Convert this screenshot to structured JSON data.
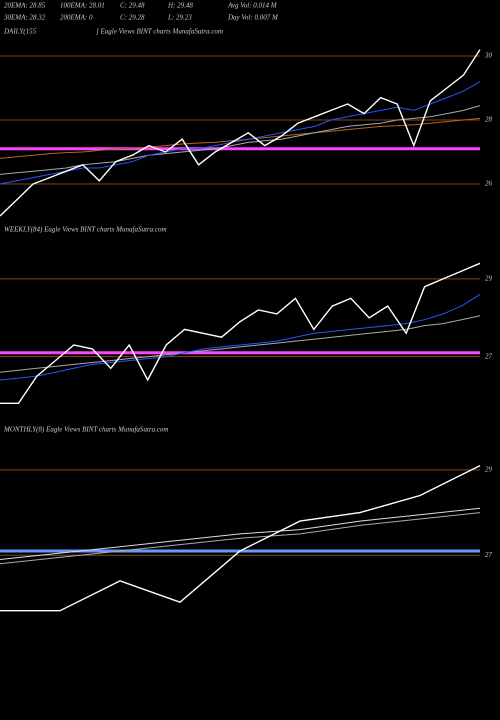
{
  "header": {
    "rows": [
      [
        "20EMA: 28.85",
        "100EMA: 28.01",
        "C: 29.48",
        "H: 29.48",
        "Avg Vol: 0.014  M"
      ],
      [
        "30EMA: 28.32",
        "200EMA: 0",
        "C: 29.28",
        "L: 29.23",
        "Day Vol: 0.007 M"
      ]
    ]
  },
  "chart_data": [
    {
      "type": "line",
      "title": "DAILY(155",
      "subtitle": "] Eagle  Views  BINT charts MunafaSutra.com",
      "ylim": [
        25,
        30.5
      ],
      "yticks": [
        26,
        28,
        30
      ],
      "grid": true,
      "grid_color": "#8b4513",
      "hline": {
        "value": 27.1,
        "color": "#ff44ff"
      },
      "series": [
        {
          "color": "#b8641e",
          "values": [
            26.8,
            26.85,
            26.9,
            26.95,
            26.98,
            27.0,
            27.05,
            27.1,
            27.12,
            27.15,
            27.2,
            27.25,
            27.28,
            27.3,
            27.35,
            27.4,
            27.45,
            27.5,
            27.55,
            27.6,
            27.65,
            27.7,
            27.75,
            27.8,
            27.82,
            27.85,
            27.9,
            27.95,
            28.0,
            28.05
          ]
        },
        {
          "color": "#aaaaaa",
          "values": [
            26.3,
            26.35,
            26.4,
            26.45,
            26.5,
            26.6,
            26.65,
            26.7,
            26.8,
            26.9,
            26.95,
            27.0,
            27.05,
            27.1,
            27.2,
            27.3,
            27.35,
            27.4,
            27.5,
            27.6,
            27.7,
            27.8,
            27.85,
            27.9,
            28.0,
            28.05,
            28.1,
            28.2,
            28.3,
            28.45
          ]
        },
        {
          "color": "#2255ff",
          "values": [
            26.0,
            26.1,
            26.2,
            26.3,
            26.4,
            26.5,
            26.5,
            26.6,
            26.7,
            26.9,
            27.0,
            27.1,
            27.1,
            27.2,
            27.3,
            27.4,
            27.5,
            27.6,
            27.7,
            27.8,
            28.0,
            28.1,
            28.2,
            28.3,
            28.4,
            28.3,
            28.5,
            28.7,
            28.9,
            29.2
          ]
        },
        {
          "color": "#ffffff",
          "values": [
            25.0,
            25.5,
            26.0,
            26.2,
            26.4,
            26.6,
            26.1,
            26.7,
            26.9,
            27.2,
            27.0,
            27.4,
            26.6,
            27.0,
            27.3,
            27.6,
            27.2,
            27.5,
            27.9,
            28.1,
            28.3,
            28.5,
            28.2,
            28.7,
            28.5,
            27.2,
            28.6,
            29.0,
            29.4,
            30.2
          ]
        }
      ]
    },
    {
      "type": "line",
      "title": "WEEKLY(84) Eagle  Views  BINT charts MunafaSutra.com",
      "ylim": [
        25.5,
        30
      ],
      "yticks": [
        27,
        29
      ],
      "grid": true,
      "grid_color": "#8b4513",
      "hline": {
        "value": 27.1,
        "color": "#ff44ff"
      },
      "series": [
        {
          "color": "#aaaaaa",
          "values": [
            26.6,
            26.65,
            26.7,
            26.75,
            26.8,
            26.85,
            26.9,
            26.95,
            27.0,
            27.05,
            27.1,
            27.15,
            27.2,
            27.25,
            27.3,
            27.35,
            27.4,
            27.45,
            27.5,
            27.55,
            27.6,
            27.65,
            27.7,
            27.8,
            27.85,
            27.95,
            28.05
          ]
        },
        {
          "color": "#2255ff",
          "values": [
            26.4,
            26.45,
            26.5,
            26.6,
            26.7,
            26.8,
            26.85,
            26.9,
            26.95,
            27.0,
            27.1,
            27.2,
            27.25,
            27.3,
            27.35,
            27.4,
            27.5,
            27.6,
            27.65,
            27.7,
            27.75,
            27.8,
            27.85,
            27.95,
            28.1,
            28.3,
            28.6
          ]
        },
        {
          "color": "#ffffff",
          "values": [
            25.8,
            25.8,
            26.5,
            26.9,
            27.3,
            27.2,
            26.7,
            27.3,
            26.4,
            27.3,
            27.7,
            27.6,
            27.5,
            27.9,
            28.2,
            28.1,
            28.5,
            27.7,
            28.3,
            28.5,
            28.0,
            28.3,
            27.6,
            28.8,
            29.0,
            29.2,
            29.4
          ]
        }
      ]
    },
    {
      "type": "line",
      "title": "MONTHLY(8) Eagle  Views  BINT charts MunafaSutra.com",
      "ylim": [
        25.6,
        29.7
      ],
      "yticks": [
        27,
        29
      ],
      "grid": true,
      "grid_color": "#8b4513",
      "hline": {
        "value": 27.1,
        "color": "#6699ff"
      },
      "series": [
        {
          "color": "#aaaaaa",
          "values": [
            26.8,
            26.95,
            27.1,
            27.25,
            27.4,
            27.5,
            27.7,
            27.85,
            28.0
          ]
        },
        {
          "color": "#dddddd",
          "values": [
            26.9,
            27.05,
            27.2,
            27.35,
            27.5,
            27.6,
            27.8,
            27.95,
            28.1
          ]
        },
        {
          "color": "#ffffff",
          "values": [
            25.7,
            25.7,
            26.4,
            25.9,
            27.1,
            27.8,
            28.0,
            28.4,
            29.1
          ]
        }
      ]
    }
  ]
}
